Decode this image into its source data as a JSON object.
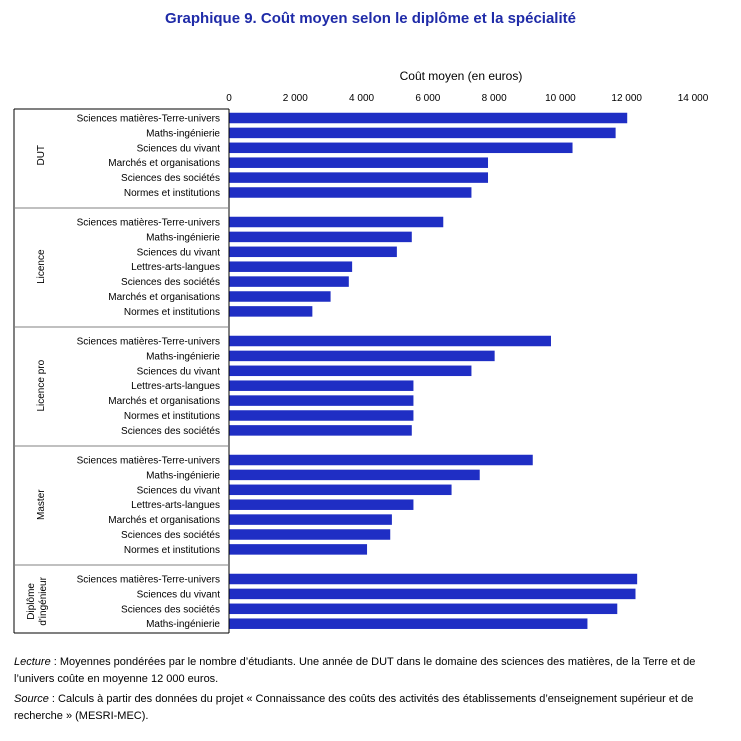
{
  "title": "Graphique 9. Coût moyen selon le diplôme et la spécialité",
  "colors": {
    "bar": "#1f2ec4",
    "title": "#1f2ba8",
    "axis": "#000000",
    "separator": "#808080"
  },
  "chart_data": {
    "type": "bar",
    "orientation": "horizontal",
    "title": "Graphique 9. Coût moyen selon le diplôme et la spécialité",
    "xlabel": "Coût moyen (en euros)",
    "xlim": [
      0,
      14000
    ],
    "xticks": [
      0,
      2000,
      4000,
      6000,
      8000,
      10000,
      12000,
      14000
    ],
    "xtick_labels": [
      "0",
      "2 000",
      "4 000",
      "6 000",
      "8 000",
      "10 000",
      "12 000",
      "14 000"
    ],
    "x_axis_position": "top",
    "groups": [
      {
        "name": "DUT",
        "categories": [
          "Sciences matières-Terre-univers",
          "Maths-ingénierie",
          "Sciences du vivant",
          "Marchés et organisations",
          "Sciences des sociétés",
          "Normes et institutions"
        ],
        "values": [
          12000,
          11650,
          10350,
          7800,
          7800,
          7300
        ]
      },
      {
        "name": "Licence",
        "categories": [
          "Sciences matières-Terre-univers",
          "Maths-ingénierie",
          "Sciences du vivant",
          "Lettres-arts-langues",
          "Sciences des sociétés",
          "Marchés et organisations",
          "Normes et institutions"
        ],
        "values": [
          6450,
          5500,
          5050,
          3700,
          3600,
          3050,
          2500
        ]
      },
      {
        "name": "Licence pro",
        "categories": [
          "Sciences matières-Terre-univers",
          "Maths-ingénierie",
          "Sciences du vivant",
          "Lettres-arts-langues",
          "Marchés et organisations",
          "Normes et institutions",
          "Sciences des sociétés"
        ],
        "values": [
          9700,
          8000,
          7300,
          5550,
          5550,
          5550,
          5500
        ]
      },
      {
        "name": "Master",
        "categories": [
          "Sciences matières-Terre-univers",
          "Maths-ingénierie",
          "Sciences du vivant",
          "Lettres-arts-langues",
          "Marchés et organisations",
          "Sciences des sociétés",
          "Normes et institutions"
        ],
        "values": [
          9150,
          7550,
          6700,
          5550,
          4900,
          4850,
          4150
        ]
      },
      {
        "name": "Diplôme d'ingénieur",
        "name_lines": [
          "Diplôme",
          "d'ingénieur"
        ],
        "categories": [
          "Sciences matières-Terre-univers",
          "Sciences du vivant",
          "Sciences des sociétés",
          "Maths-ingénierie"
        ],
        "values": [
          12300,
          12250,
          11700,
          10800
        ]
      }
    ]
  },
  "notes": {
    "lecture_label": "Lecture",
    "lecture_text": " : Moyennes pondérées par le nombre d’étudiants. Une année de DUT dans le domaine des sciences des matières, de la Terre et de l’univers coûte en moyenne 12 000 euros.",
    "source_label": "Source",
    "source_text": " : Calculs à partir des données du projet « Connaissance des coûts des activités des établissements d’enseignement supérieur et de recherche » (MESRI-MEC)."
  }
}
